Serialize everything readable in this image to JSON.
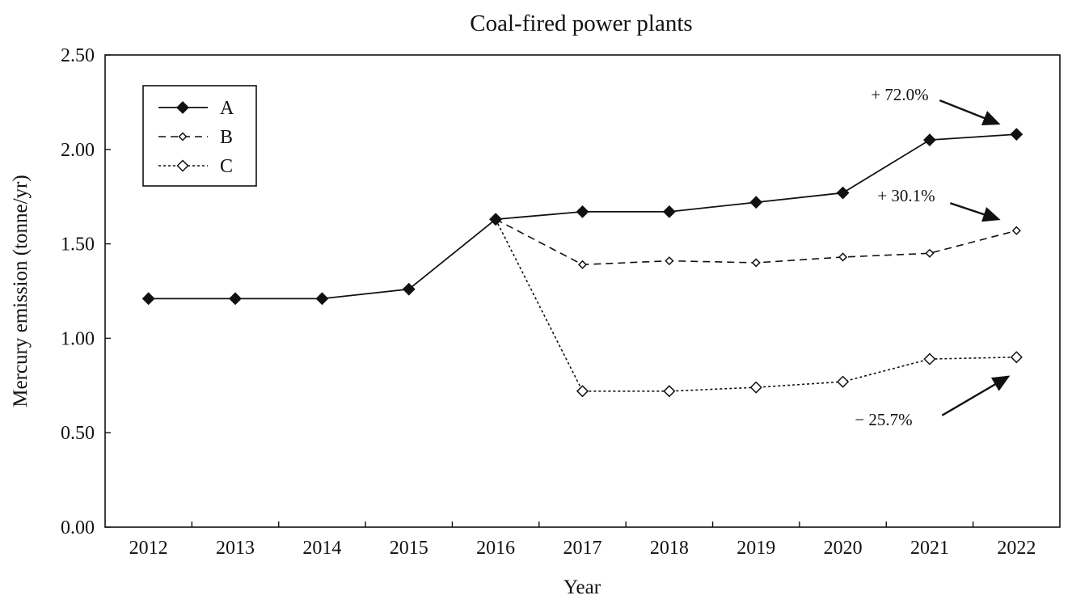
{
  "chart_data": {
    "type": "line",
    "title": "Coal-fired power plants",
    "xlabel": "Year",
    "ylabel": "Mercury emission (tonne/yr)",
    "categories": [
      "2012",
      "2013",
      "2014",
      "2015",
      "2016",
      "2017",
      "2018",
      "2019",
      "2020",
      "2021",
      "2022"
    ],
    "ylim": [
      0,
      2.5
    ],
    "yticks": [
      "0.00",
      "0.50",
      "1.00",
      "1.50",
      "2.00",
      "2.50"
    ],
    "grid": false,
    "legend_position": "top-left",
    "series": [
      {
        "name": "A",
        "style": "solid",
        "marker": "filled-diamond",
        "values": [
          1.21,
          1.21,
          1.21,
          1.26,
          1.63,
          1.67,
          1.67,
          1.72,
          1.77,
          2.05,
          2.08
        ]
      },
      {
        "name": "B",
        "style": "dashed",
        "marker": "small-open-diamond",
        "values": [
          null,
          null,
          null,
          null,
          1.63,
          1.39,
          1.41,
          1.4,
          1.43,
          1.45,
          1.57
        ]
      },
      {
        "name": "C",
        "style": "dotted",
        "marker": "open-diamond",
        "values": [
          null,
          null,
          null,
          null,
          1.63,
          0.72,
          0.72,
          0.74,
          0.77,
          0.89,
          0.9
        ]
      }
    ],
    "annotations": [
      {
        "text": "+ 72.0%",
        "series": "A"
      },
      {
        "text": "+ 30.1%",
        "series": "B"
      },
      {
        "text": "− 25.7%",
        "series": "C"
      }
    ],
    "colors": {
      "line": "#111111",
      "background": "#ffffff"
    }
  }
}
